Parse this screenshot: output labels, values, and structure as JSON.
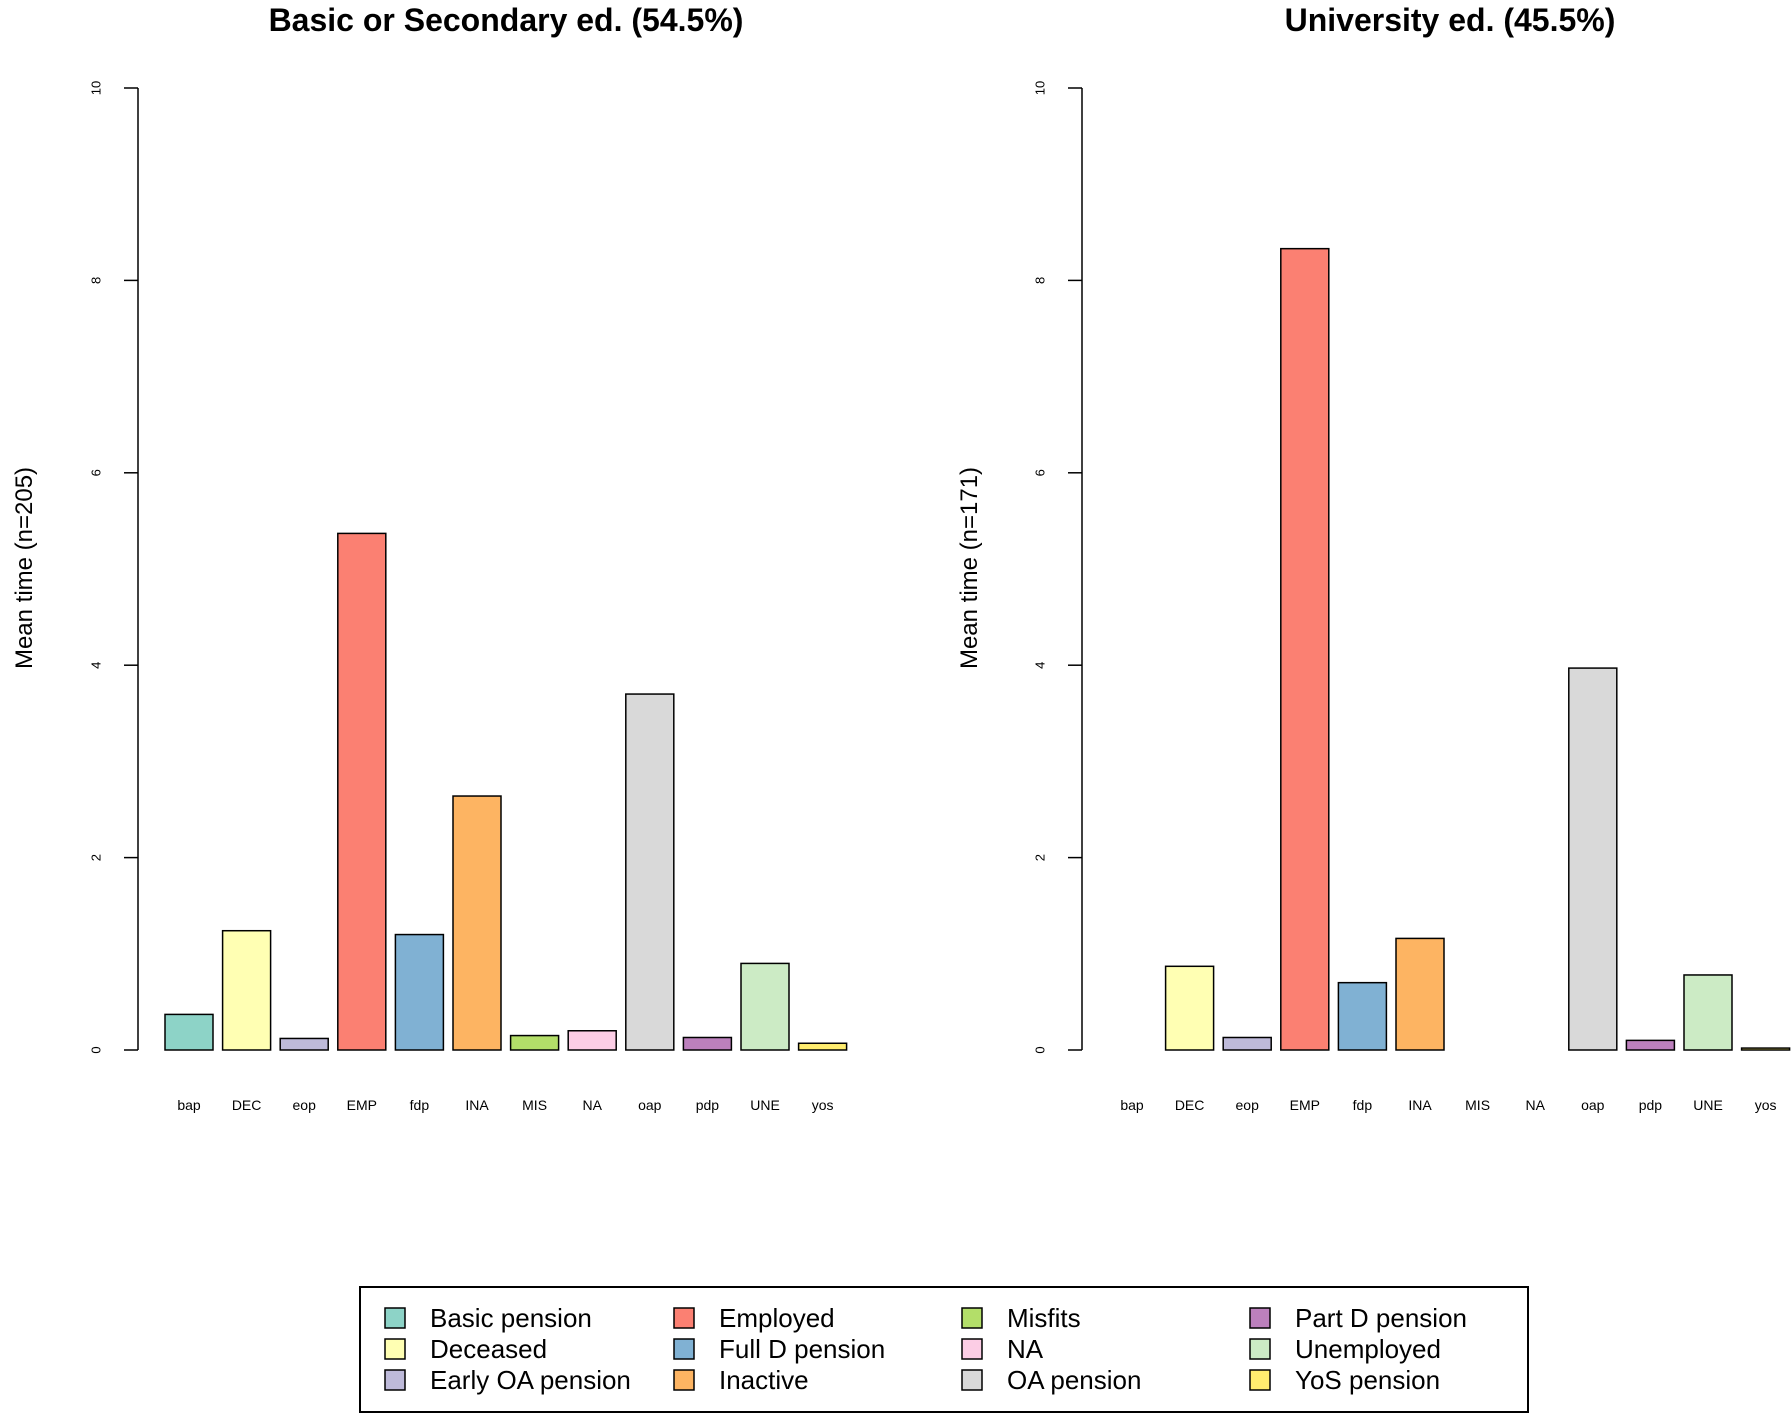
{
  "chart_data": [
    {
      "type": "bar",
      "title": "Basic or Secondary ed. (54.5%)",
      "ylabel": "Mean time (n=205)",
      "xlabel": "",
      "ylim": [
        0,
        10
      ],
      "yticks": [
        0,
        2,
        4,
        6,
        8,
        10
      ],
      "categories": [
        "bap",
        "DEC",
        "eop",
        "EMP",
        "fdp",
        "INA",
        "MIS",
        "NA",
        "oap",
        "pdp",
        "UNE",
        "yos"
      ],
      "values": [
        0.37,
        1.24,
        0.12,
        5.37,
        1.2,
        2.64,
        0.15,
        0.2,
        3.7,
        0.13,
        0.9,
        0.07
      ]
    },
    {
      "type": "bar",
      "title": "University ed. (45.5%)",
      "ylabel": "Mean time (n=171)",
      "xlabel": "",
      "ylim": [
        0,
        10
      ],
      "yticks": [
        0,
        2,
        4,
        6,
        8,
        10
      ],
      "categories": [
        "bap",
        "DEC",
        "eop",
        "EMP",
        "fdp",
        "INA",
        "MIS",
        "NA",
        "oap",
        "pdp",
        "UNE",
        "yos"
      ],
      "values": [
        0.0,
        0.87,
        0.13,
        8.33,
        0.7,
        1.16,
        0.0,
        0.0,
        3.97,
        0.1,
        0.78,
        0.02
      ]
    }
  ],
  "category_colors": [
    "#8dd3c7",
    "#ffffb3",
    "#bebada",
    "#fb8072",
    "#80b1d3",
    "#fdb462",
    "#b3de69",
    "#fccde5",
    "#d9d9d9",
    "#bc80bd",
    "#ccebc5",
    "#ffed6f"
  ],
  "legend": {
    "columns": [
      [
        {
          "label": "Basic pension",
          "color": "#8dd3c7"
        },
        {
          "label": "Deceased",
          "color": "#ffffb3"
        },
        {
          "label": "Early OA pension",
          "color": "#bebada"
        }
      ],
      [
        {
          "label": "Employed",
          "color": "#fb8072"
        },
        {
          "label": "Full D pension",
          "color": "#80b1d3"
        },
        {
          "label": "Inactive",
          "color": "#fdb462"
        }
      ],
      [
        {
          "label": "Misfits",
          "color": "#b3de69"
        },
        {
          "label": "NA",
          "color": "#fccde5"
        },
        {
          "label": "OA pension",
          "color": "#d9d9d9"
        }
      ],
      [
        {
          "label": "Part D pension",
          "color": "#bc80bd"
        },
        {
          "label": "Unemployed",
          "color": "#ccebc5"
        },
        {
          "label": "YoS pension",
          "color": "#ffed6f"
        }
      ]
    ]
  }
}
